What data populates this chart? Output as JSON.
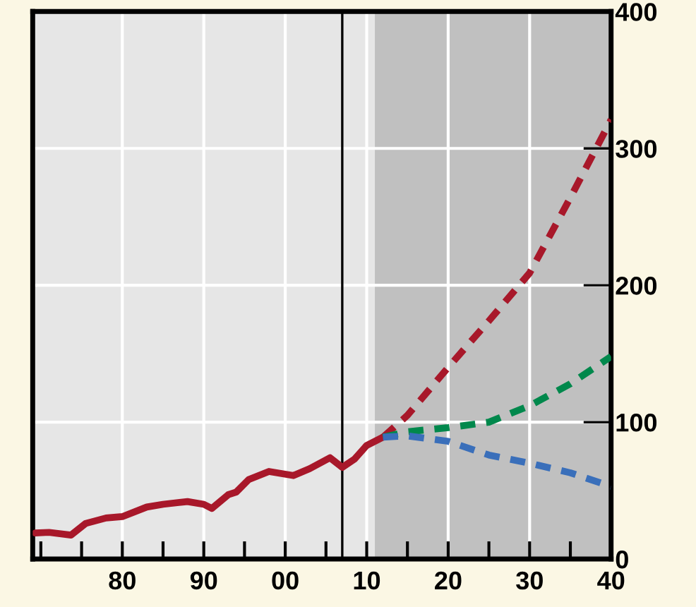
{
  "chart_data": {
    "type": "line",
    "series": [
      {
        "color": "#a8182a",
        "line_style": "solid",
        "x": [
          1969.3,
          1971,
          1973.7,
          1975.5,
          1978,
          1980,
          1983,
          1985,
          1988,
          1990,
          1991,
          1993,
          1994,
          1995.5,
          1998,
          2001,
          2003,
          2005.5,
          2007,
          2008.5,
          2010,
          2012
        ],
        "values": [
          19,
          19.5,
          17.5,
          26,
          30,
          31,
          38,
          40,
          42,
          40,
          37,
          47,
          49,
          58,
          64,
          61,
          66,
          74,
          67,
          73,
          83,
          89
        ]
      },
      {
        "color": "#a8182a",
        "line_style": "dashed",
        "x": [
          2012,
          2015,
          2020,
          2025,
          2030,
          2035,
          2040
        ],
        "values": [
          89,
          105,
          140,
          174,
          209,
          264,
          321
        ]
      },
      {
        "color": "#00884c",
        "line_style": "dashed",
        "x": [
          2012,
          2015,
          2020,
          2025,
          2030,
          2035,
          2040
        ],
        "values": [
          89,
          93,
          96,
          100,
          112,
          128,
          148
        ]
      },
      {
        "color": "#3a6fba",
        "line_style": "dashed",
        "x": [
          2012,
          2015,
          2020,
          2025,
          2030,
          2035,
          2040
        ],
        "values": [
          89,
          90,
          86,
          76,
          70,
          63,
          53
        ]
      }
    ],
    "xlim": [
      1969,
      2040
    ],
    "xticks": [
      {
        "value": 1970,
        "label": null
      },
      {
        "value": 1975,
        "label": null
      },
      {
        "value": 1980,
        "label": "80"
      },
      {
        "value": 1985,
        "label": null
      },
      {
        "value": 1990,
        "label": "90"
      },
      {
        "value": 1995,
        "label": null
      },
      {
        "value": 2000,
        "label": "00"
      },
      {
        "value": 2005,
        "label": null
      },
      {
        "value": 2010,
        "label": "10"
      },
      {
        "value": 2015,
        "label": null
      },
      {
        "value": 2020,
        "label": "20"
      },
      {
        "value": 2025,
        "label": null
      },
      {
        "value": 2030,
        "label": "30"
      },
      {
        "value": 2035,
        "label": null
      },
      {
        "value": 2040,
        "label": "40"
      }
    ],
    "ylim": [
      0,
      400
    ],
    "yticks": [
      0,
      100,
      200,
      300,
      400
    ],
    "grid": true,
    "bands": [
      {
        "axis": "x",
        "from": 1969,
        "to": 2011,
        "color": "#e6e6e6"
      },
      {
        "axis": "x",
        "from": 2011,
        "to": 2040,
        "color": "#c0c0c0"
      }
    ],
    "ref_lines": [
      {
        "axis": "x",
        "value": 2007,
        "color": "#000000",
        "line_style": "solid"
      }
    ]
  }
}
